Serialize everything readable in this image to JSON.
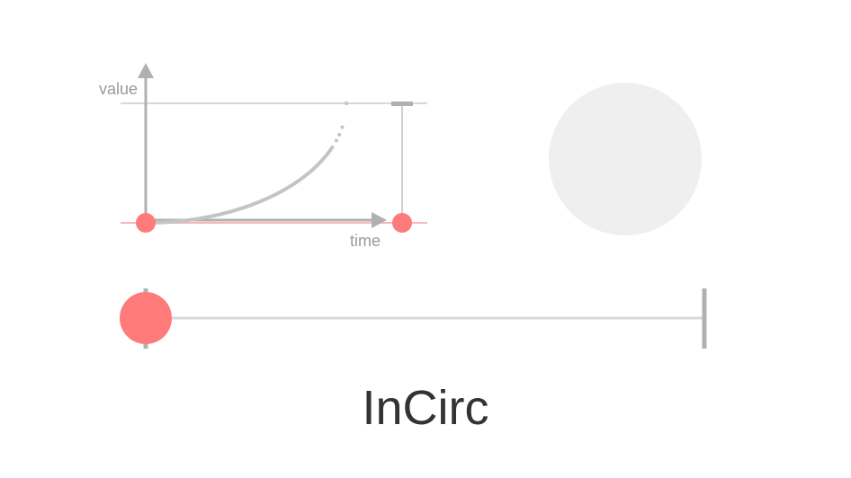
{
  "easing": {
    "name": "InCirc"
  },
  "graph": {
    "y_axis_label": "value",
    "x_axis_label": "time"
  },
  "progress": {
    "value": 0.0
  },
  "colors": {
    "accent": "#ff7b7b",
    "accent_line": "#f4b8b8",
    "axis": "#b0b0b0",
    "curve": "#c4c4c4",
    "track": "#d9d9d9",
    "preview": "#efefef",
    "title": "#333333"
  }
}
